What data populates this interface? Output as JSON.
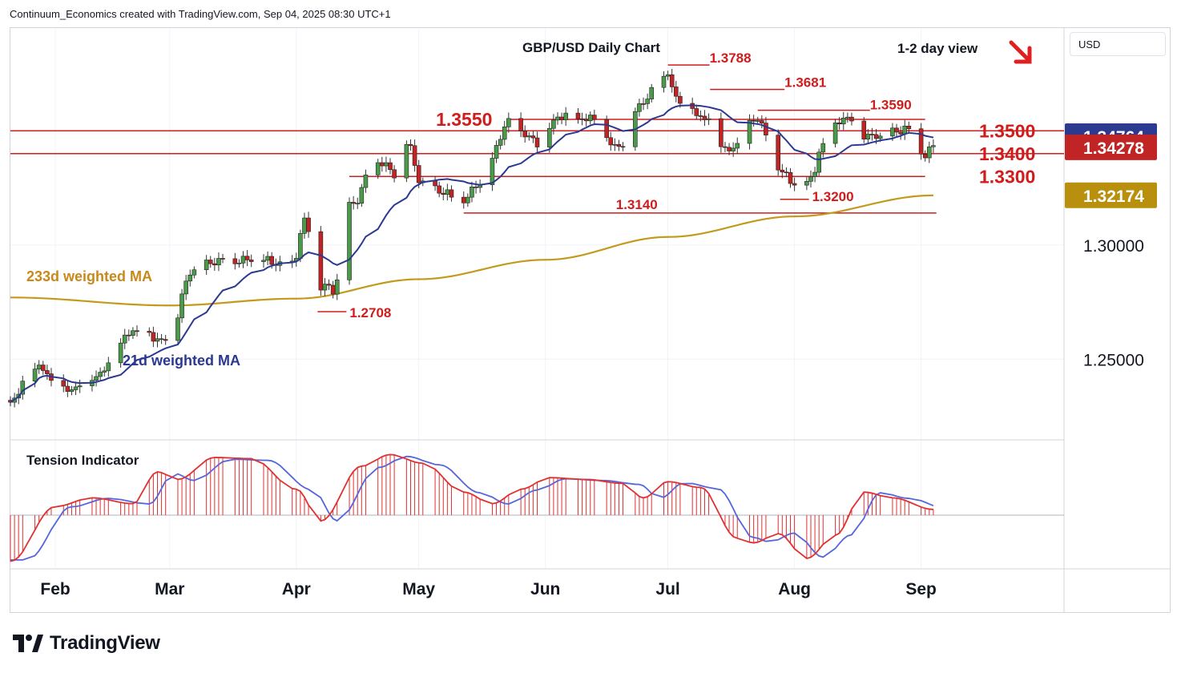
{
  "credit": "Continuum_Economics created with TradingView.com, Sep 04, 2025 08:30 UTC+1",
  "brand": "TradingView",
  "currency": "USD",
  "colors": {
    "up": "#4a9a4a",
    "down": "#c12424",
    "ma21": "#2b3990",
    "ma233": "#c49a1e",
    "level": "#d11c1c",
    "tension_fill": "#e03131",
    "tension_line": "#5566dd"
  },
  "chart_data": {
    "type": "candlestick",
    "title": "GBP/USD Daily Chart",
    "view_label": "1-2 day view",
    "view_direction": "down",
    "ylim": [
      1.215,
      1.395
    ],
    "y_ticks": [
      {
        "value": 1.25,
        "label": "1.25000"
      },
      {
        "value": 1.3,
        "label": "1.30000"
      }
    ],
    "x_labels": [
      {
        "label": "Feb",
        "date": "2025-02-01"
      },
      {
        "label": "Mar",
        "date": "2025-03-01"
      },
      {
        "label": "Apr",
        "date": "2025-04-01"
      },
      {
        "label": "May",
        "date": "2025-05-01"
      },
      {
        "label": "Jun",
        "date": "2025-06-01"
      },
      {
        "label": "Jul",
        "date": "2025-07-01"
      },
      {
        "label": "Aug",
        "date": "2025-08-01"
      },
      {
        "label": "Sep",
        "date": "2025-09-01"
      }
    ],
    "x_range": [
      "2025-01-21",
      "2025-10-06"
    ],
    "price_tags": [
      {
        "value": 1.34764,
        "label": "1.34764",
        "color": "#2b3990"
      },
      {
        "value": 1.34278,
        "label": "1.34278",
        "color": "#c12424"
      },
      {
        "value": 1.32174,
        "label": "1.32174",
        "color": "#b8900e"
      }
    ],
    "levels": [
      {
        "value": 1.35,
        "label": "1.3500",
        "style": "full"
      },
      {
        "value": 1.34,
        "label": "1.3400",
        "style": "full"
      },
      {
        "value": 1.33,
        "label": "1.3300",
        "style": "partial"
      },
      {
        "value": 1.355,
        "label": "1.3550",
        "style": "partial"
      }
    ],
    "swing_labels": [
      {
        "value": 1.3788,
        "label": "1.3788",
        "date": "2025-07-01"
      },
      {
        "value": 1.3681,
        "label": "1.3681",
        "date": "2025-07-07"
      },
      {
        "value": 1.359,
        "label": "1.3590",
        "date": "2025-07-23"
      },
      {
        "value": 1.314,
        "label": "1.3140",
        "date": "2025-05-12"
      },
      {
        "value": 1.32,
        "label": "1.3200",
        "date": "2025-08-01"
      },
      {
        "value": 1.2708,
        "label": "1.2708",
        "date": "2025-04-07"
      }
    ],
    "ma_labels": [
      {
        "label": "233d weighted MA",
        "color": "#c8891a"
      },
      {
        "label": "21d weighted MA",
        "color": "#2b3990"
      }
    ],
    "anchors": [
      [
        "2025-01-21",
        1.232
      ],
      [
        "2025-01-27",
        1.247
      ],
      [
        "2025-02-03",
        1.236
      ],
      [
        "2025-02-11",
        1.243
      ],
      [
        "2025-02-21",
        1.263
      ],
      [
        "2025-02-28",
        1.258
      ],
      [
        "2025-03-07",
        1.289
      ],
      [
        "2025-03-14",
        1.294
      ],
      [
        "2025-03-21",
        1.293
      ],
      [
        "2025-03-31",
        1.292
      ],
      [
        "2025-04-03",
        1.31
      ],
      [
        "2025-04-07",
        1.282
      ],
      [
        "2025-04-10",
        1.28
      ],
      [
        "2025-04-14",
        1.317
      ],
      [
        "2025-04-21",
        1.337
      ],
      [
        "2025-04-25",
        1.331
      ],
      [
        "2025-04-28",
        1.344
      ],
      [
        "2025-05-02",
        1.327
      ],
      [
        "2025-05-12",
        1.319
      ],
      [
        "2025-05-16",
        1.328
      ],
      [
        "2025-05-23",
        1.353
      ],
      [
        "2025-05-30",
        1.345
      ],
      [
        "2025-06-05",
        1.357
      ],
      [
        "2025-06-12",
        1.355
      ],
      [
        "2025-06-18",
        1.343
      ],
      [
        "2025-06-20",
        1.345
      ],
      [
        "2025-06-24",
        1.362
      ],
      [
        "2025-07-01",
        1.374
      ],
      [
        "2025-07-03",
        1.364
      ],
      [
        "2025-07-10",
        1.356
      ],
      [
        "2025-07-16",
        1.341
      ],
      [
        "2025-07-23",
        1.355
      ],
      [
        "2025-07-29",
        1.333
      ],
      [
        "2025-08-01",
        1.325
      ],
      [
        "2025-08-05",
        1.328
      ],
      [
        "2025-08-08",
        1.345
      ],
      [
        "2025-08-13",
        1.356
      ],
      [
        "2025-08-20",
        1.347
      ],
      [
        "2025-08-26",
        1.349
      ],
      [
        "2025-08-28",
        1.352
      ],
      [
        "2025-09-02",
        1.34
      ],
      [
        "2025-09-04",
        1.3428
      ]
    ],
    "ma233_anchors": [
      [
        "2025-01-21",
        1.277
      ],
      [
        "2025-03-01",
        1.2735
      ],
      [
        "2025-04-01",
        1.2765
      ],
      [
        "2025-05-01",
        1.285
      ],
      [
        "2025-06-01",
        1.2935
      ],
      [
        "2025-07-01",
        1.3035
      ],
      [
        "2025-08-01",
        1.3125
      ],
      [
        "2025-09-04",
        1.3217
      ]
    ],
    "tension_indicator": {
      "label": "Tension Indicator",
      "baseline": 0,
      "anchors": [
        [
          "2025-01-21",
          -0.8
        ],
        [
          "2025-02-01",
          0.15
        ],
        [
          "2025-02-10",
          0.3
        ],
        [
          "2025-02-20",
          0.2
        ],
        [
          "2025-02-26",
          0.75
        ],
        [
          "2025-03-03",
          0.62
        ],
        [
          "2025-03-12",
          1.0
        ],
        [
          "2025-03-21",
          0.98
        ],
        [
          "2025-04-01",
          0.45
        ],
        [
          "2025-04-07",
          -0.1
        ],
        [
          "2025-04-17",
          0.85
        ],
        [
          "2025-04-24",
          1.05
        ],
        [
          "2025-05-02",
          0.9
        ],
        [
          "2025-05-12",
          0.4
        ],
        [
          "2025-05-19",
          0.2
        ],
        [
          "2025-05-26",
          0.45
        ],
        [
          "2025-06-02",
          0.65
        ],
        [
          "2025-06-11",
          0.62
        ],
        [
          "2025-06-20",
          0.55
        ],
        [
          "2025-06-25",
          0.3
        ],
        [
          "2025-07-01",
          0.58
        ],
        [
          "2025-07-09",
          0.48
        ],
        [
          "2025-07-18",
          -0.4
        ],
        [
          "2025-07-22",
          -0.48
        ],
        [
          "2025-07-28",
          -0.32
        ],
        [
          "2025-08-04",
          -0.75
        ],
        [
          "2025-08-11",
          -0.35
        ],
        [
          "2025-08-18",
          0.4
        ],
        [
          "2025-08-25",
          0.3
        ],
        [
          "2025-09-04",
          0.1
        ]
      ]
    }
  }
}
